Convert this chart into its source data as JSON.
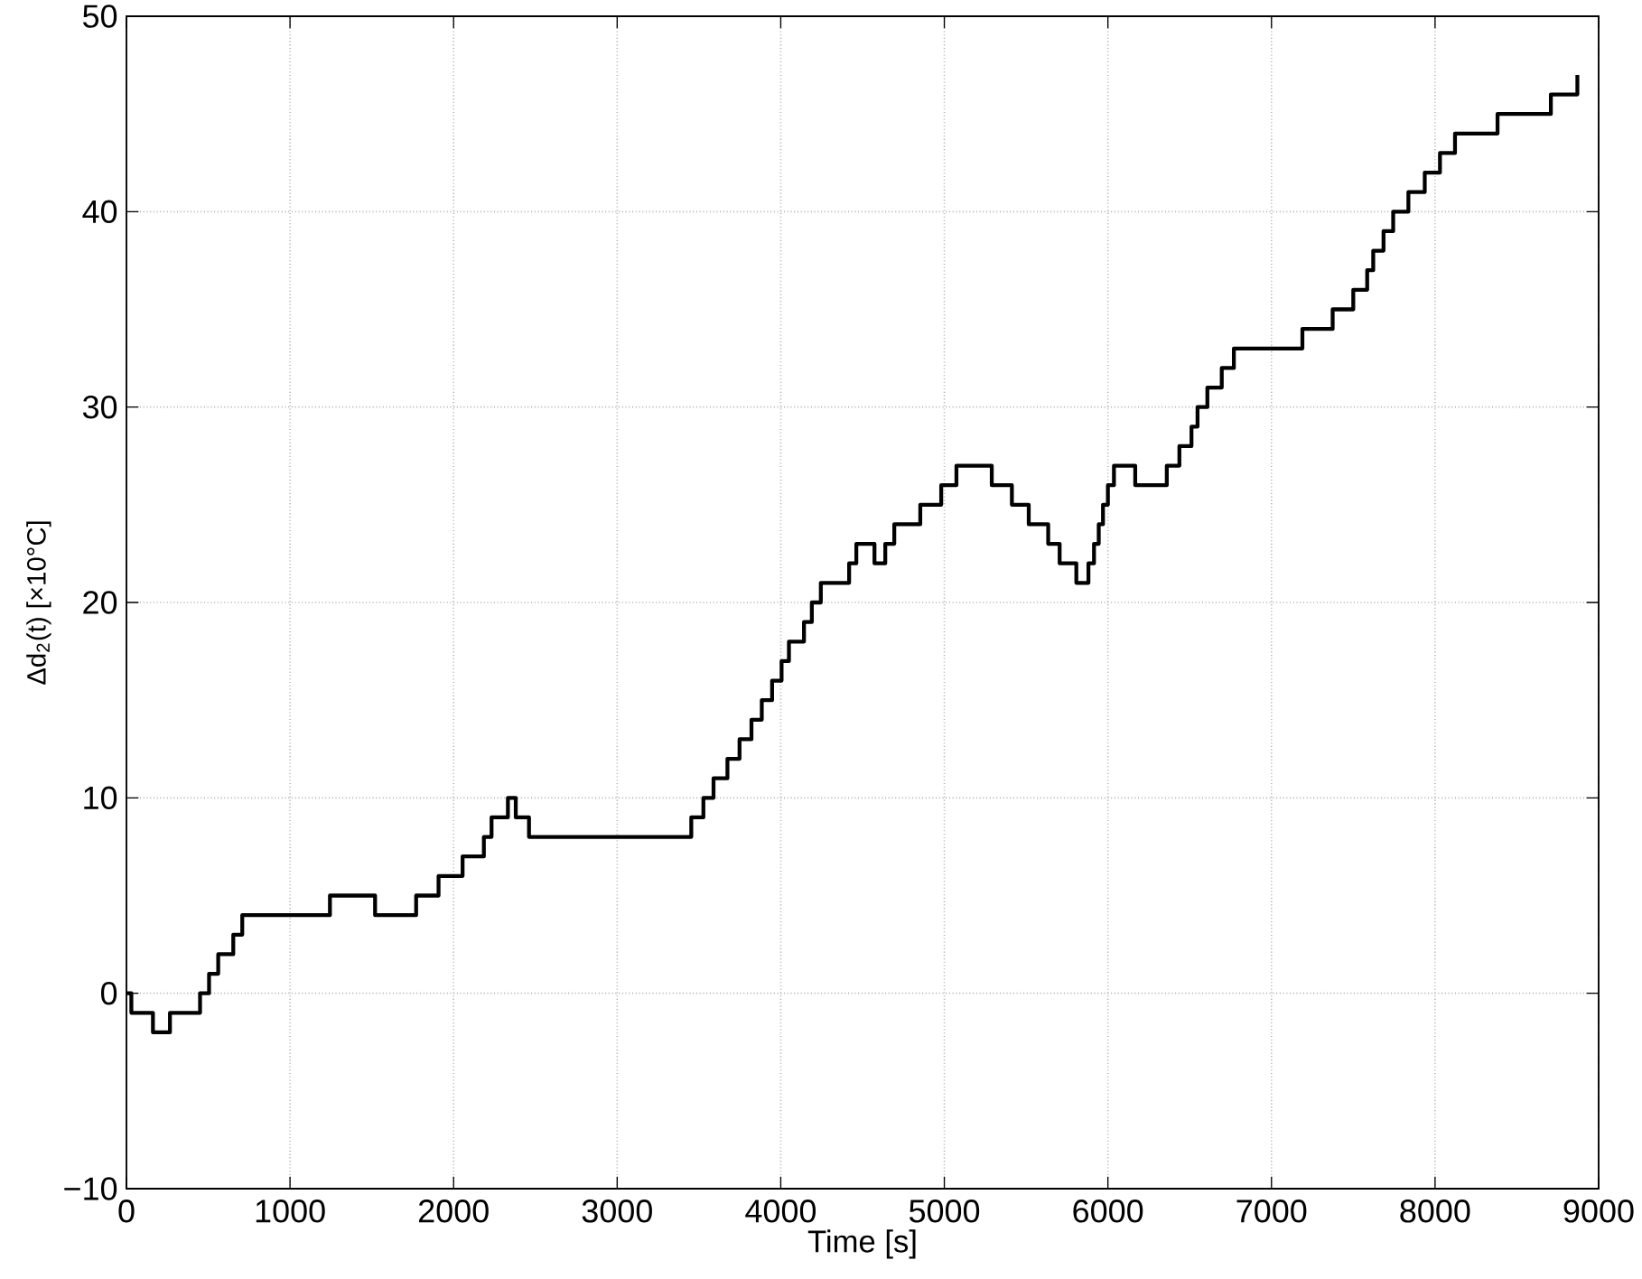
{
  "chart_data": {
    "type": "step",
    "xlabel": "Time [s]",
    "ylabel": "Δd$_{2}$(t) [×10°C]",
    "x": [
      0,
      30,
      162,
      266,
      450,
      505,
      561,
      653,
      708,
      1244,
      1520,
      1771,
      1908,
      2055,
      2185,
      2232,
      2332,
      2380,
      2461,
      3453,
      3527,
      3589,
      3674,
      3748,
      3821,
      3884,
      3947,
      4005,
      4050,
      4142,
      4190,
      4245,
      4418,
      4462,
      4573,
      4639,
      4694,
      4853,
      4981,
      5074,
      5290,
      5413,
      5516,
      5635,
      5705,
      5807,
      5881,
      5915,
      5944,
      5970,
      6000,
      6037,
      6167,
      6360,
      6437,
      6511,
      6548,
      6608,
      6696,
      6770,
      7189,
      7374,
      7500,
      7585,
      7622,
      7685,
      7744,
      7837,
      7937,
      8030,
      8122,
      8382,
      8708,
      8870
    ],
    "values": [
      0,
      -1,
      -2,
      -1,
      0,
      1,
      2,
      3,
      4,
      5,
      4,
      5,
      6,
      7,
      8,
      9,
      10,
      9,
      8,
      9,
      10,
      11,
      12,
      13,
      14,
      15,
      16,
      17,
      18,
      19,
      20,
      21,
      22,
      23,
      22,
      23,
      24,
      25,
      26,
      27,
      26,
      25,
      24,
      23,
      22,
      21,
      22,
      23,
      24,
      25,
      26,
      27,
      26,
      27,
      28,
      29,
      30,
      31,
      32,
      33,
      34,
      35,
      36,
      37,
      38,
      39,
      40,
      41,
      42,
      43,
      44,
      45,
      46,
      47
    ],
    "color": "#000000",
    "xlim": [
      0,
      9000
    ],
    "ylim": [
      -10,
      50
    ],
    "xticks": [
      0,
      1000,
      2000,
      3000,
      4000,
      5000,
      6000,
      7000,
      8000,
      9000
    ],
    "yticks": [
      {
        "value": -10,
        "label": "−10"
      },
      0,
      10,
      20,
      30,
      40,
      50
    ],
    "grid": true
  }
}
